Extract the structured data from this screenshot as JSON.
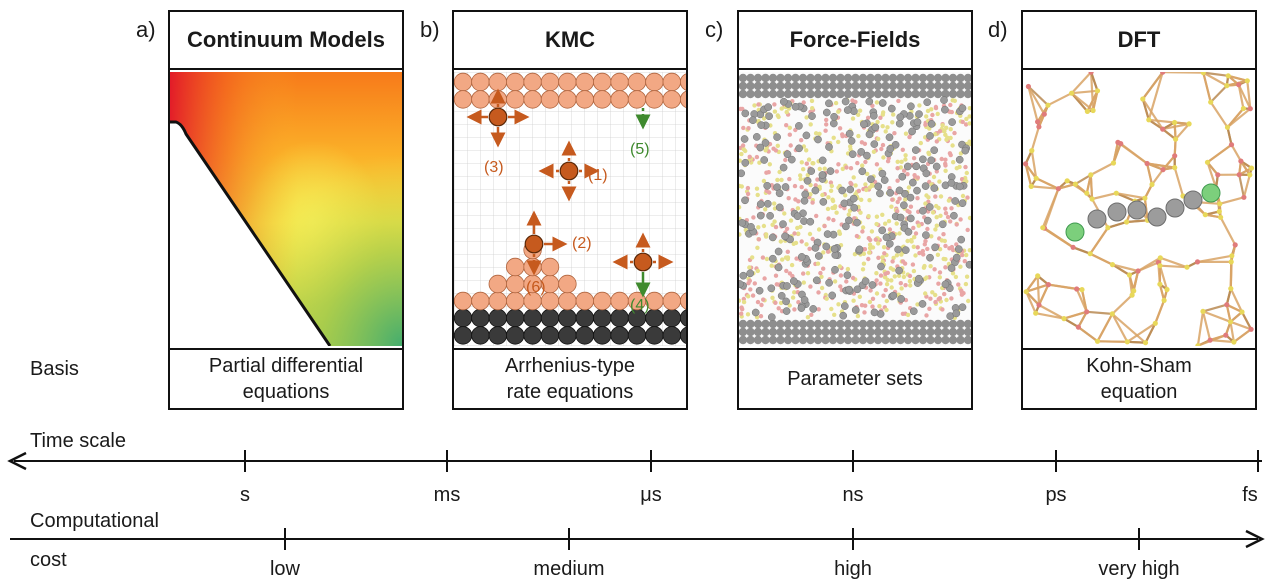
{
  "panels": [
    {
      "letter": "a)",
      "title": "Continuum Models",
      "basis": "Partial differential\nequations"
    },
    {
      "letter": "b)",
      "title": "KMC",
      "basis": "Arrhenius-type\nrate equations"
    },
    {
      "letter": "c)",
      "title": "Force-Fields",
      "basis": "Parameter sets"
    },
    {
      "letter": "d)",
      "title": "DFT",
      "basis": "Kohn-Sham\nequation"
    }
  ],
  "kmc_labels": [
    "(1)",
    "(2)",
    "(3)",
    "(4)",
    "(5)",
    "(6)"
  ],
  "rows": {
    "basis": "Basis",
    "time_scale": "Time scale",
    "cost_line1": "Computational",
    "cost_line2": "cost"
  },
  "time_ticks": [
    "s",
    "ms",
    "μs",
    "ns",
    "ps",
    "fs"
  ],
  "cost_ticks": [
    "low",
    "medium",
    "high",
    "very high"
  ],
  "colors": {
    "kmc_orange": "#c65a1e",
    "kmc_atom": "#f2a884",
    "kmc_green": "#3f8a2e",
    "substrate": "#3a3a3a",
    "dft_bond": "#d9a466",
    "dft_li": "#7ccf7c"
  }
}
